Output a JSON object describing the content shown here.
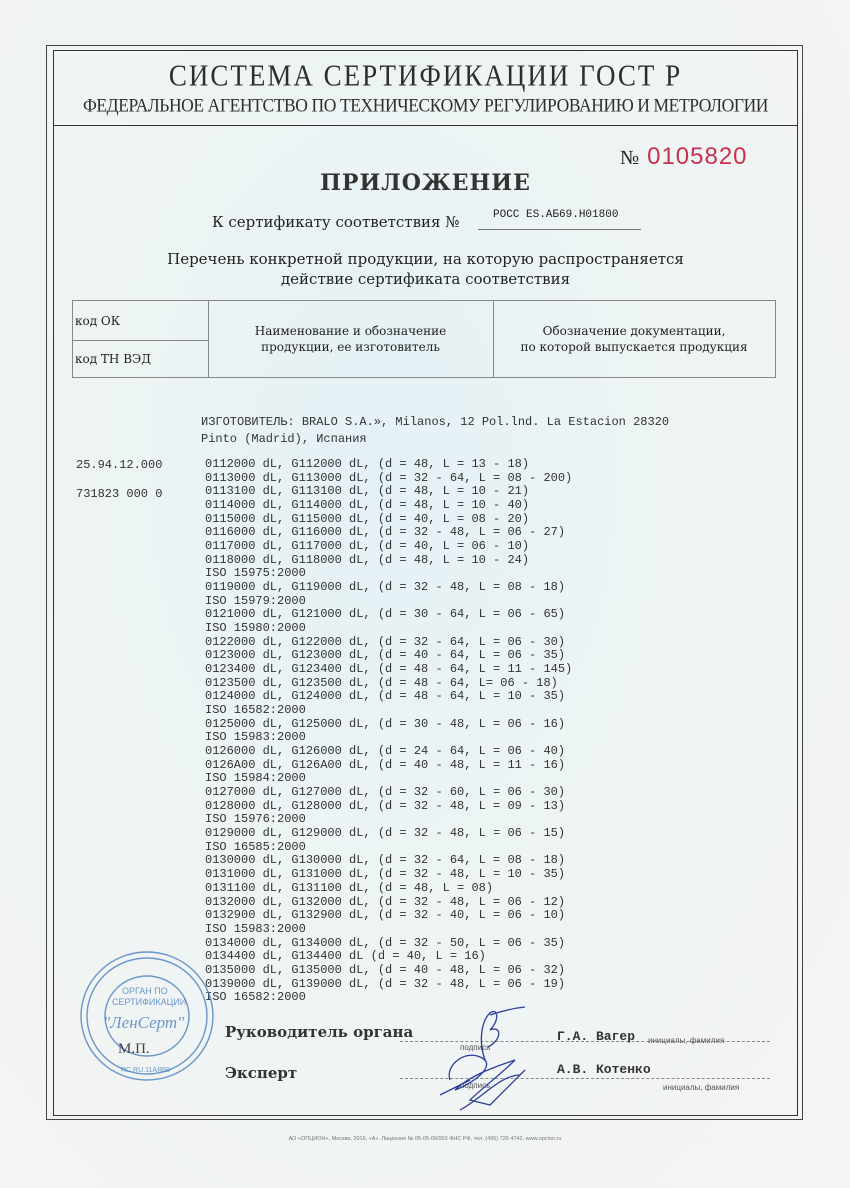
{
  "header": {
    "system_title": "СИСТЕМА СЕРТИФИКАЦИИ ГОСТ Р",
    "agency": "ФЕДЕРАЛЬНОЕ АГЕНТСТВО ПО ТЕХНИЧЕСКОМУ РЕГУЛИРОВАНИЮ И МЕТРОЛОГИИ"
  },
  "form_number": {
    "symbol": "№",
    "value": "0105820",
    "color": "#c8314f"
  },
  "appendix_title": "ПРИЛОЖЕНИЕ",
  "certificate": {
    "label": "К сертификату соответствия №",
    "value": "РОСС ES.АБ69.Н01800"
  },
  "list_title": {
    "line1": "Перечень конкретной продукции,  на которую распространяется",
    "line2": "действие сертификата соответствия"
  },
  "table_header": {
    "code_ok": "код ОК",
    "code_tn": "код ТН ВЭД",
    "col_name": {
      "line1": "Наименование и обозначение",
      "line2": "продукции, ее изготовитель"
    },
    "col_docs": {
      "line1": "Обозначение документации,",
      "line2": "по которой выпускается продукция"
    }
  },
  "manufacturer": {
    "line1": "ИЗГОТОВИТЕЛЬ: BRALO S.A.», Milanos, 12 Pol.lnd. La Estacion 28320",
    "line2": "Pinto (Madrid), Испания"
  },
  "codes": {
    "ok": "25.94.12.000",
    "tn_ved": "731823 000 0"
  },
  "products": [
    "0112000 dL, G112000 dL, (d = 48, L = 13 - 18)",
    "0113000 dL, G113000 dL, (d = 32 - 64, L = 08 - 200)",
    "0113100 dL, G113100 dL, (d = 48, L = 10 - 21)",
    "0114000 dL, G114000 dL, (d = 48, L = 10 - 40)",
    "0115000 dL, G115000 dL, (d = 40, L = 08 - 20)",
    "0116000 dL, G116000 dL, (d = 32 - 48, L = 06 - 27)",
    "0117000 dL, G117000 dL, (d = 40, L = 06 - 10)",
    "0118000 dL, G118000 dL, (d = 48, L = 10 - 24)",
    "ISO 15975:2000",
    "0119000 dL, G119000 dL, (d = 32 - 48, L = 08 - 18)",
    "ISO 15979:2000",
    "0121000 dL, G121000 dL, (d = 30 - 64, L = 06 - 65)",
    "ISO 15980:2000",
    "0122000 dL, G122000 dL, (d = 32 - 64, L = 06 - 30)",
    "0123000 dL, G123000 dL, (d = 40 - 64, L = 06 - 35)",
    "0123400 dL, G123400 dL, (d = 48 - 64, L = 11 - 145)",
    "0123500 dL, G123500 dL, (d = 48 - 64, L= 06 - 18)",
    "0124000 dL, G124000 dL, (d = 48 - 64, L = 10 - 35)",
    "ISO 16582:2000",
    "0125000 dL, G125000 dL, (d = 30 - 48, L = 06 - 16)",
    "ISO 15983:2000",
    "0126000 dL, G126000 dL, (d = 24 - 64, L = 06 - 40)",
    "0126A00 dL, G126A00 dL, (d = 40 - 48, L = 11 - 16)",
    "ISO 15984:2000",
    "0127000 dL, G127000 dL, (d = 32 - 60, L = 06 - 30)",
    "0128000 dL, G128000 dL, (d = 32 - 48, L = 09 - 13)",
    "ISO 15976:2000",
    "0129000 dL, G129000 dL, (d = 32 - 48, L = 06 - 15)",
    "ISO 16585:2000",
    "0130000 dL, G130000 dL, (d = 32 - 64, L = 08 - 18)",
    "0131000 dL, G131000 dL, (d = 32 - 48, L = 10 - 35)",
    "0131100 dL, G131100 dL, (d = 48, L = 08)",
    "0132000 dL, G132000 dL, (d = 32 - 48, L = 06 - 12)",
    "0132900 dL, G132900 dL, (d = 32 - 40, L = 06 - 10)",
    "ISO 15983:2000",
    "0134000 dL, G134000 dL, (d = 32 - 50, L = 06 - 35)",
    "0134400 dL, G134400 dL (d = 40, L = 16)",
    "0135000 dL, G135000 dL, (d = 40 - 48, L = 06 - 32)",
    "0139000 dL, G139000 dL, (d = 32 - 48, L = 06 - 19)",
    "ISO 16582:2000"
  ],
  "signatures": {
    "head_label": "Руководитель органа",
    "head_name": "Г.А. Вагер",
    "expert_label": "Эксперт",
    "expert_name": "А.В. Котенко",
    "sign_caption": "подпись",
    "name_caption": "инициалы, фамилия",
    "seal_label": "М.П."
  },
  "stamp": {
    "line1": "ОРГАН ПО",
    "line2": "СЕРТИФИКАЦИИ",
    "name": "\"ЛенСерт\"",
    "code": "RC.RU.11АЯ69",
    "color": "#4a7fc1"
  },
  "footer": "АО «ОПЦИОН», Москва, 2016, «А». Лицензия № 05-05-09/003 ФНС РФ, тел. (495) 726 4742, www.opcion.ru"
}
